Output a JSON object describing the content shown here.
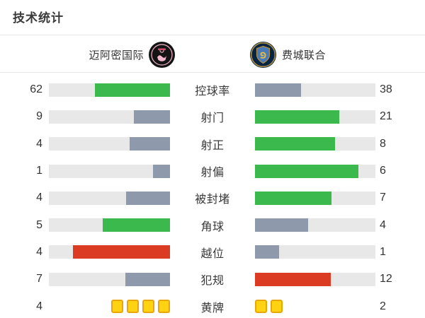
{
  "title": "技术统计",
  "teams": {
    "home": {
      "name": "迈阿密国际",
      "logo_icon": "inter-miami-crest-icon"
    },
    "away": {
      "name": "费城联合",
      "logo_icon": "philadelphia-union-crest-icon"
    }
  },
  "colors": {
    "green": "#3cb94c",
    "gray": "#8e9aab",
    "red": "#da3b22",
    "track": "#e8e8e8",
    "card_fill": "#ffd312",
    "card_border": "#e9a60c",
    "text": "#333333",
    "divider": "#e9e9e9",
    "miami_black": "#141414",
    "miami_pink": "#f5b6cd",
    "union_navy": "#072440",
    "union_gold": "#b08f46",
    "union_blue": "#4a7ab8"
  },
  "stats": [
    {
      "label": "控球率",
      "home": 62,
      "away": 38,
      "home_color": "green",
      "away_color": "gray",
      "type": "bar"
    },
    {
      "label": "射门",
      "home": 9,
      "away": 21,
      "home_color": "gray",
      "away_color": "green",
      "type": "bar"
    },
    {
      "label": "射正",
      "home": 4,
      "away": 8,
      "home_color": "gray",
      "away_color": "green",
      "type": "bar"
    },
    {
      "label": "射偏",
      "home": 1,
      "away": 6,
      "home_color": "gray",
      "away_color": "green",
      "type": "bar"
    },
    {
      "label": "被封堵",
      "home": 4,
      "away": 7,
      "home_color": "gray",
      "away_color": "green",
      "type": "bar"
    },
    {
      "label": "角球",
      "home": 5,
      "away": 4,
      "home_color": "green",
      "away_color": "gray",
      "type": "bar"
    },
    {
      "label": "越位",
      "home": 4,
      "away": 1,
      "home_color": "red",
      "away_color": "gray",
      "type": "bar"
    },
    {
      "label": "犯规",
      "home": 7,
      "away": 12,
      "home_color": "gray",
      "away_color": "red",
      "type": "bar"
    },
    {
      "label": "黄牌",
      "home": 4,
      "away": 2,
      "home_color": "yellow",
      "away_color": "yellow",
      "type": "cards"
    }
  ],
  "chart_data": {
    "type": "bar",
    "title": "技术统计",
    "categories": [
      "控球率",
      "射门",
      "射正",
      "射偏",
      "被封堵",
      "角球",
      "越位",
      "犯规",
      "黄牌"
    ],
    "series": [
      {
        "name": "迈阿密国际",
        "values": [
          62,
          9,
          4,
          1,
          4,
          5,
          4,
          7,
          4
        ]
      },
      {
        "name": "费城联合",
        "values": [
          38,
          21,
          8,
          6,
          7,
          4,
          1,
          12,
          2
        ]
      }
    ],
    "layout": "paired horizontal bars, labels centered, fills anchored toward center, fill length proportional to value share",
    "bar_color_rule": "green = higher value (positive stat), red = higher value (negative stat: 越位/犯规), gray = lower value, yellow card squares for 黄牌"
  }
}
